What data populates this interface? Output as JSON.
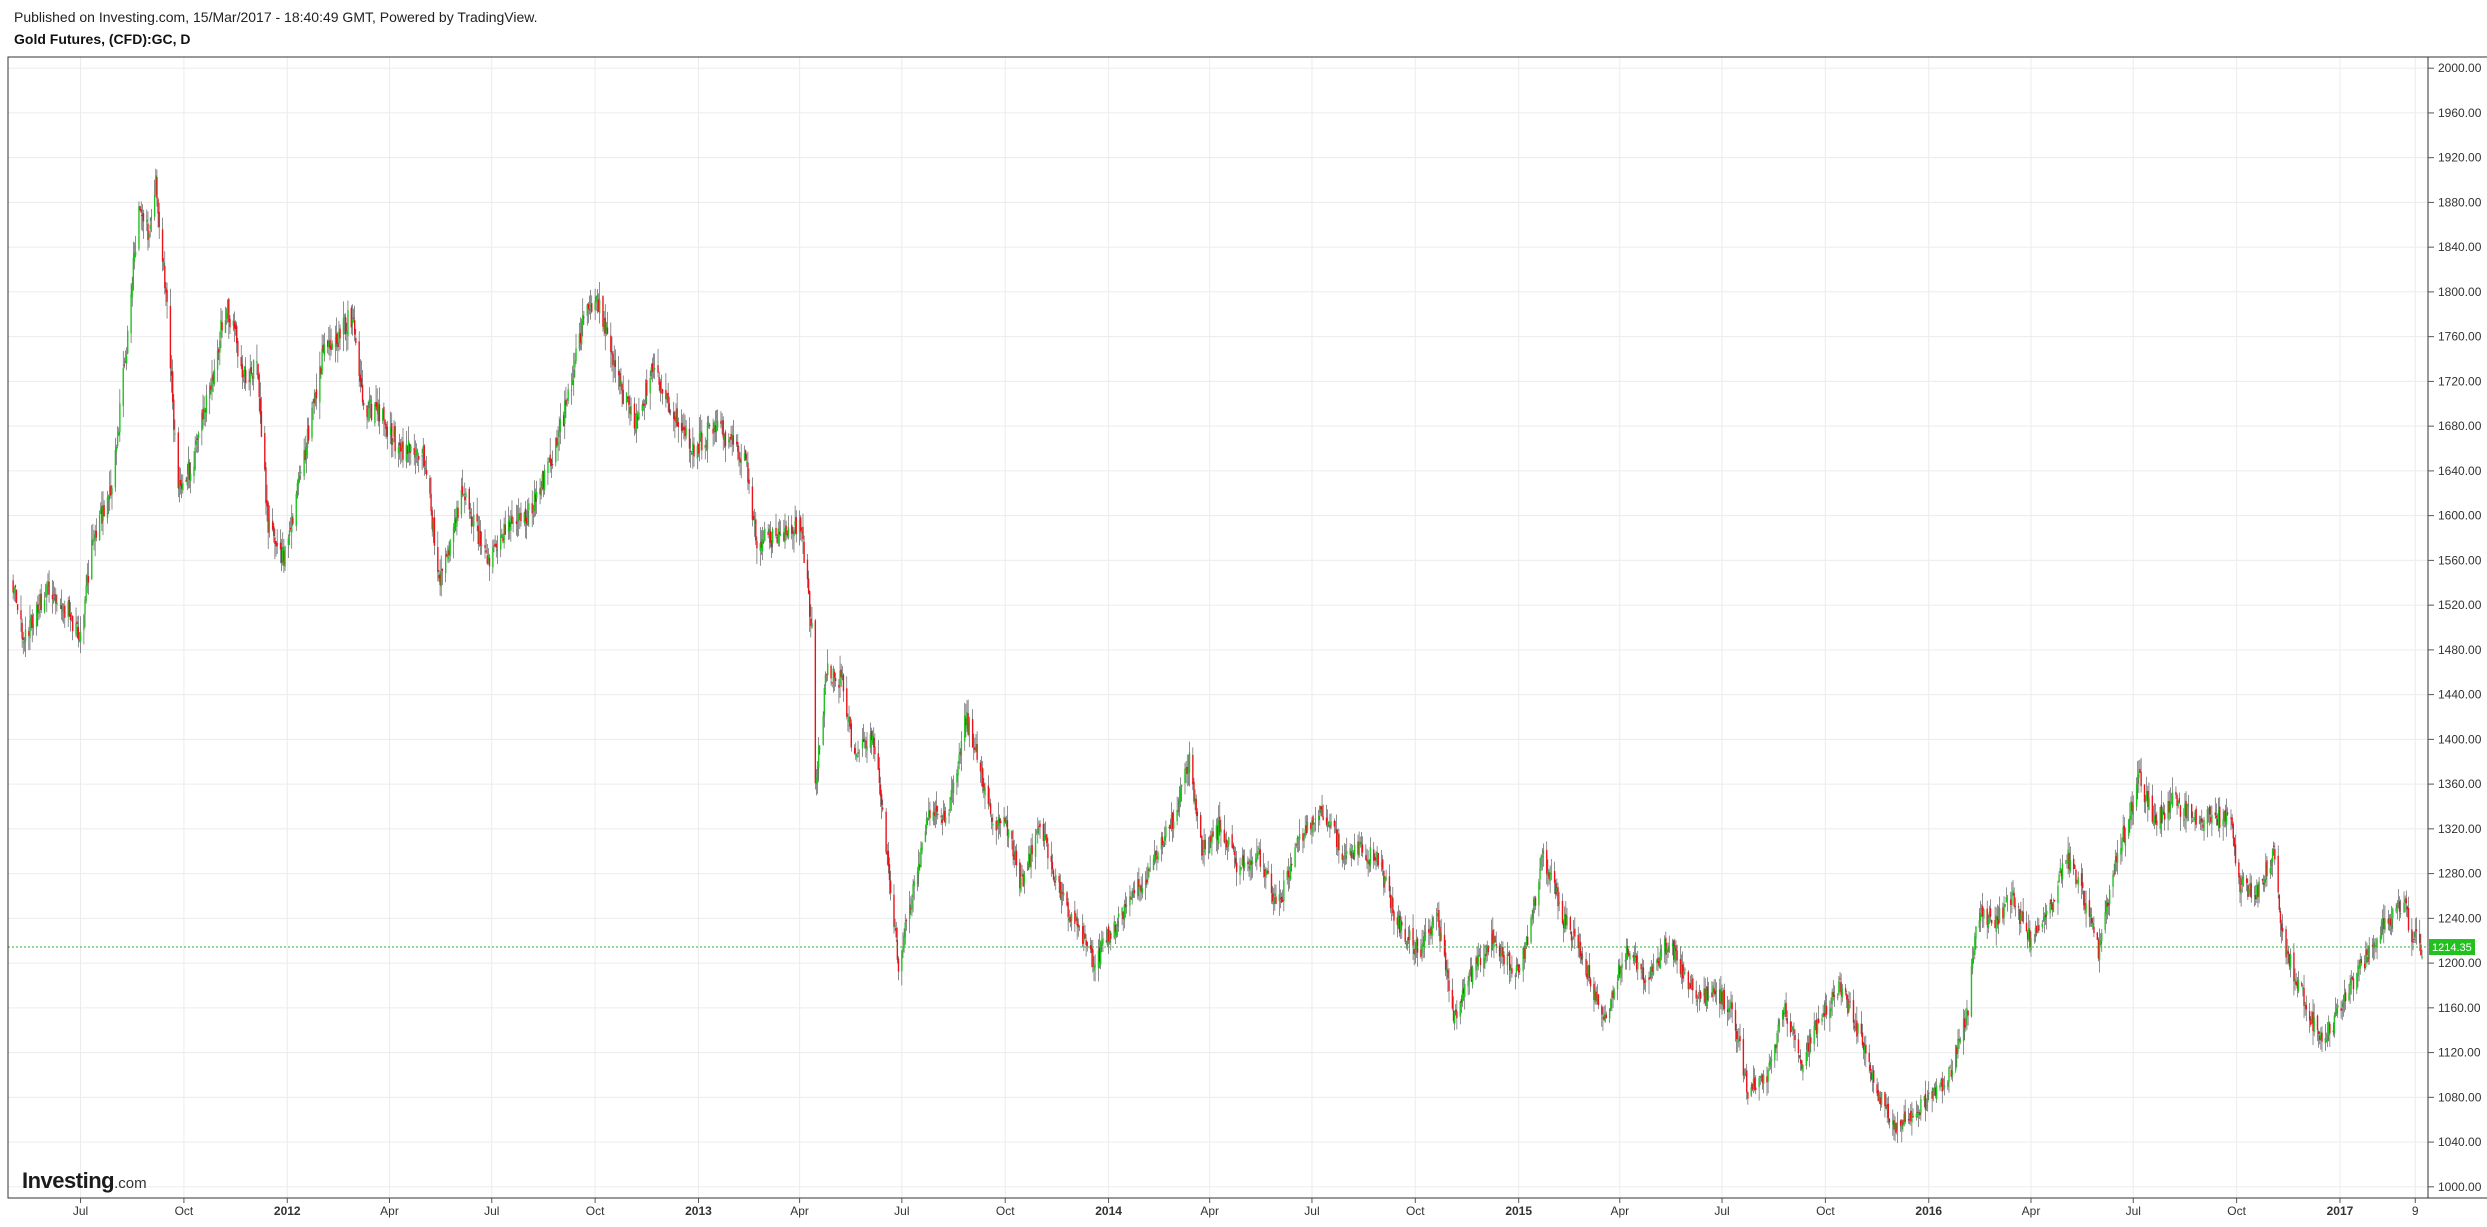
{
  "header": {
    "published": "Published on Investing.com, 15/Mar/2017 - 18:40:49 GMT, Powered by TradingView.",
    "title": "Gold Futures, (CFD):GC, D"
  },
  "brand": {
    "main": "Investing",
    "suffix": ".com"
  },
  "colors": {
    "up": "#1ec31e",
    "down": "#e8141a",
    "wick": "#444444",
    "price_line": "#22b822",
    "price_badge": "#22c11f",
    "grid": "#ececec",
    "axis": "#555555"
  },
  "chart_data": {
    "type": "candlestick",
    "title": "Gold Futures, (CFD):GC, D",
    "interval": "D",
    "x_range": [
      "2011-05-01",
      "2017-03-15"
    ],
    "ylim": [
      990,
      2010
    ],
    "y_axis_position": "right",
    "grid": true,
    "last_price": 1214.35,
    "last_price_label": "1214.35",
    "y_ticks": [
      "1000.00",
      "1040.00",
      "1080.00",
      "1120.00",
      "1160.00",
      "1200.00",
      "1240.00",
      "1280.00",
      "1320.00",
      "1360.00",
      "1400.00",
      "1440.00",
      "1480.00",
      "1520.00",
      "1560.00",
      "1600.00",
      "1640.00",
      "1680.00",
      "1720.00",
      "1760.00",
      "1800.00",
      "1840.00",
      "1880.00",
      "1920.00",
      "1960.00",
      "2000.00"
    ],
    "x_ticks": [
      {
        "label": "Jul",
        "date": "2011-07-01",
        "bold": false
      },
      {
        "label": "Oct",
        "date": "2011-10-01",
        "bold": false
      },
      {
        "label": "2012",
        "date": "2012-01-01",
        "bold": true
      },
      {
        "label": "Apr",
        "date": "2012-04-01",
        "bold": false
      },
      {
        "label": "Jul",
        "date": "2012-07-01",
        "bold": false
      },
      {
        "label": "Oct",
        "date": "2012-10-01",
        "bold": false
      },
      {
        "label": "2013",
        "date": "2013-01-01",
        "bold": true
      },
      {
        "label": "Apr",
        "date": "2013-04-01",
        "bold": false
      },
      {
        "label": "Jul",
        "date": "2013-07-01",
        "bold": false
      },
      {
        "label": "Oct",
        "date": "2013-10-01",
        "bold": false
      },
      {
        "label": "2014",
        "date": "2014-01-01",
        "bold": true
      },
      {
        "label": "Apr",
        "date": "2014-04-01",
        "bold": false
      },
      {
        "label": "Jul",
        "date": "2014-07-01",
        "bold": false
      },
      {
        "label": "Oct",
        "date": "2014-10-01",
        "bold": false
      },
      {
        "label": "2015",
        "date": "2015-01-01",
        "bold": true
      },
      {
        "label": "Apr",
        "date": "2015-04-01",
        "bold": false
      },
      {
        "label": "Jul",
        "date": "2015-07-01",
        "bold": false
      },
      {
        "label": "Oct",
        "date": "2015-10-01",
        "bold": false
      },
      {
        "label": "2016",
        "date": "2016-01-01",
        "bold": true
      },
      {
        "label": "Apr",
        "date": "2016-04-01",
        "bold": false
      },
      {
        "label": "Jul",
        "date": "2016-07-01",
        "bold": false
      },
      {
        "label": "Oct",
        "date": "2016-10-01",
        "bold": false
      },
      {
        "label": "2017",
        "date": "2017-01-01",
        "bold": true
      },
      {
        "label": "9",
        "date": "2017-03-09",
        "bold": false
      }
    ],
    "price_path": [
      [
        "2011-05-01",
        1540
      ],
      [
        "2011-05-12",
        1490
      ],
      [
        "2011-06-01",
        1535
      ],
      [
        "2011-06-20",
        1515
      ],
      [
        "2011-07-01",
        1490
      ],
      [
        "2011-07-12",
        1580
      ],
      [
        "2011-07-28",
        1620
      ],
      [
        "2011-08-10",
        1740
      ],
      [
        "2011-08-22",
        1880
      ],
      [
        "2011-09-01",
        1850
      ],
      [
        "2011-09-06",
        1900
      ],
      [
        "2011-09-15",
        1800
      ],
      [
        "2011-09-26",
        1620
      ],
      [
        "2011-10-10",
        1650
      ],
      [
        "2011-10-25",
        1720
      ],
      [
        "2011-11-08",
        1790
      ],
      [
        "2011-11-25",
        1720
      ],
      [
        "2011-12-05",
        1740
      ],
      [
        "2011-12-15",
        1590
      ],
      [
        "2011-12-29",
        1560
      ],
      [
        "2012-01-10",
        1620
      ],
      [
        "2012-02-01",
        1740
      ],
      [
        "2012-02-28",
        1780
      ],
      [
        "2012-03-08",
        1700
      ],
      [
        "2012-03-25",
        1690
      ],
      [
        "2012-04-10",
        1660
      ],
      [
        "2012-05-01",
        1660
      ],
      [
        "2012-05-16",
        1540
      ],
      [
        "2012-06-05",
        1620
      ],
      [
        "2012-06-28",
        1560
      ],
      [
        "2012-07-15",
        1590
      ],
      [
        "2012-08-01",
        1600
      ],
      [
        "2012-08-20",
        1640
      ],
      [
        "2012-09-06",
        1700
      ],
      [
        "2012-09-21",
        1780
      ],
      [
        "2012-10-04",
        1790
      ],
      [
        "2012-10-22",
        1720
      ],
      [
        "2012-11-05",
        1680
      ],
      [
        "2012-11-22",
        1730
      ],
      [
        "2012-12-05",
        1700
      ],
      [
        "2012-12-28",
        1660
      ],
      [
        "2013-01-15",
        1680
      ],
      [
        "2013-01-25",
        1670
      ],
      [
        "2013-02-12",
        1650
      ],
      [
        "2013-02-21",
        1580
      ],
      [
        "2013-03-10",
        1580
      ],
      [
        "2013-04-02",
        1590
      ],
      [
        "2013-04-12",
        1500
      ],
      [
        "2013-04-15",
        1360
      ],
      [
        "2013-04-25",
        1460
      ],
      [
        "2013-05-10",
        1450
      ],
      [
        "2013-05-20",
        1380
      ],
      [
        "2013-06-05",
        1410
      ],
      [
        "2013-06-20",
        1280
      ],
      [
        "2013-06-28",
        1200
      ],
      [
        "2013-07-10",
        1260
      ],
      [
        "2013-07-25",
        1330
      ],
      [
        "2013-08-10",
        1330
      ],
      [
        "2013-08-27",
        1420
      ],
      [
        "2013-09-10",
        1370
      ],
      [
        "2013-09-20",
        1330
      ],
      [
        "2013-10-03",
        1320
      ],
      [
        "2013-10-15",
        1270
      ],
      [
        "2013-11-01",
        1320
      ],
      [
        "2013-11-20",
        1260
      ],
      [
        "2013-12-05",
        1230
      ],
      [
        "2013-12-19",
        1200
      ],
      [
        "2014-01-10",
        1240
      ],
      [
        "2014-02-10",
        1290
      ],
      [
        "2014-02-28",
        1330
      ],
      [
        "2014-03-14",
        1380
      ],
      [
        "2014-03-25",
        1300
      ],
      [
        "2014-04-10",
        1320
      ],
      [
        "2014-04-25",
        1290
      ],
      [
        "2014-05-15",
        1295
      ],
      [
        "2014-06-01",
        1250
      ],
      [
        "2014-06-20",
        1310
      ],
      [
        "2014-07-10",
        1335
      ],
      [
        "2014-07-28",
        1300
      ],
      [
        "2014-08-15",
        1300
      ],
      [
        "2014-08-30",
        1290
      ],
      [
        "2014-09-15",
        1235
      ],
      [
        "2014-10-05",
        1210
      ],
      [
        "2014-10-20",
        1245
      ],
      [
        "2014-11-05",
        1150
      ],
      [
        "2014-11-20",
        1190
      ],
      [
        "2014-12-08",
        1220
      ],
      [
        "2014-12-30",
        1190
      ],
      [
        "2015-01-10",
        1220
      ],
      [
        "2015-01-22",
        1300
      ],
      [
        "2015-02-10",
        1240
      ],
      [
        "2015-03-01",
        1200
      ],
      [
        "2015-03-17",
        1150
      ],
      [
        "2015-04-06",
        1210
      ],
      [
        "2015-04-25",
        1185
      ],
      [
        "2015-05-15",
        1220
      ],
      [
        "2015-06-05",
        1175
      ],
      [
        "2015-06-30",
        1170
      ],
      [
        "2015-07-10",
        1160
      ],
      [
        "2015-07-24",
        1085
      ],
      [
        "2015-08-10",
        1100
      ],
      [
        "2015-08-25",
        1160
      ],
      [
        "2015-09-10",
        1110
      ],
      [
        "2015-09-25",
        1150
      ],
      [
        "2015-10-14",
        1180
      ],
      [
        "2015-10-30",
        1140
      ],
      [
        "2015-11-15",
        1085
      ],
      [
        "2015-12-03",
        1055
      ],
      [
        "2015-12-17",
        1060
      ],
      [
        "2016-01-05",
        1085
      ],
      [
        "2016-01-20",
        1100
      ],
      [
        "2016-02-05",
        1160
      ],
      [
        "2016-02-12",
        1240
      ],
      [
        "2016-03-01",
        1240
      ],
      [
        "2016-03-15",
        1260
      ],
      [
        "2016-04-01",
        1220
      ],
      [
        "2016-04-20",
        1255
      ],
      [
        "2016-05-02",
        1300
      ],
      [
        "2016-05-20",
        1250
      ],
      [
        "2016-05-31",
        1210
      ],
      [
        "2016-06-15",
        1290
      ],
      [
        "2016-06-24",
        1320
      ],
      [
        "2016-07-06",
        1365
      ],
      [
        "2016-07-20",
        1325
      ],
      [
        "2016-08-05",
        1345
      ],
      [
        "2016-08-25",
        1330
      ],
      [
        "2016-09-10",
        1330
      ],
      [
        "2016-09-25",
        1330
      ],
      [
        "2016-10-04",
        1270
      ],
      [
        "2016-10-20",
        1265
      ],
      [
        "2016-11-04",
        1300
      ],
      [
        "2016-11-10",
        1225
      ],
      [
        "2016-11-25",
        1180
      ],
      [
        "2016-12-15",
        1130
      ],
      [
        "2016-12-28",
        1150
      ],
      [
        "2017-01-10",
        1180
      ],
      [
        "2017-01-25",
        1205
      ],
      [
        "2017-02-10",
        1235
      ],
      [
        "2017-02-27",
        1255
      ],
      [
        "2017-03-06",
        1225
      ],
      [
        "2017-03-15",
        1214.35
      ]
    ]
  }
}
